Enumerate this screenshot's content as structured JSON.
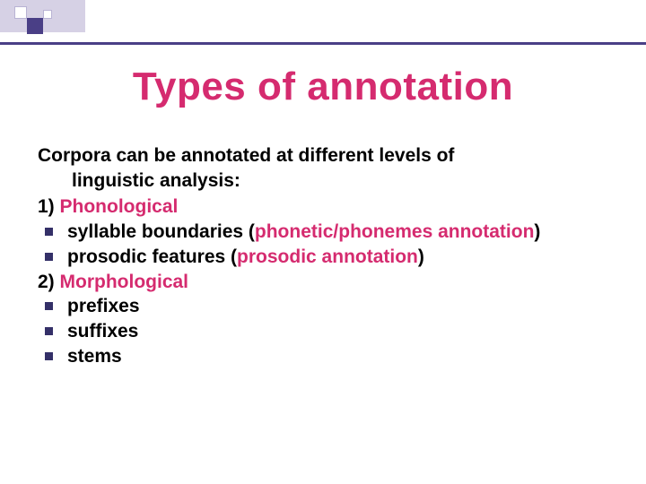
{
  "colors": {
    "title_color": "#d52b6f",
    "accent_color": "#d52b6f",
    "body_color": "#000000",
    "stripe_color": "#4a3f86",
    "bullet_color": "#343068",
    "corner_base": "#d6d1e5",
    "corner_dark": "#4a3f86",
    "background": "#ffffff"
  },
  "typography": {
    "title_fontsize": 44,
    "body_fontsize": 21,
    "font_family": "Arial",
    "title_weight": "bold",
    "body_weight": "bold"
  },
  "title": "Types of annotation",
  "intro_line1": "Corpora can be annotated at different levels of",
  "intro_line2": "linguistic analysis:",
  "section1": {
    "heading_prefix": "1) ",
    "heading": "Phonological",
    "items": [
      {
        "pre": "syllable boundaries (",
        "accent": "phonetic/phonemes annotation",
        "post": ")"
      },
      {
        "pre": "prosodic features (",
        "accent": "prosodic annotation",
        "post": ")"
      }
    ]
  },
  "section2": {
    "heading_prefix": "2) ",
    "heading": "Morphological",
    "items": [
      {
        "text": "prefixes"
      },
      {
        "text": "suffixes"
      },
      {
        "text": "stems"
      }
    ]
  }
}
